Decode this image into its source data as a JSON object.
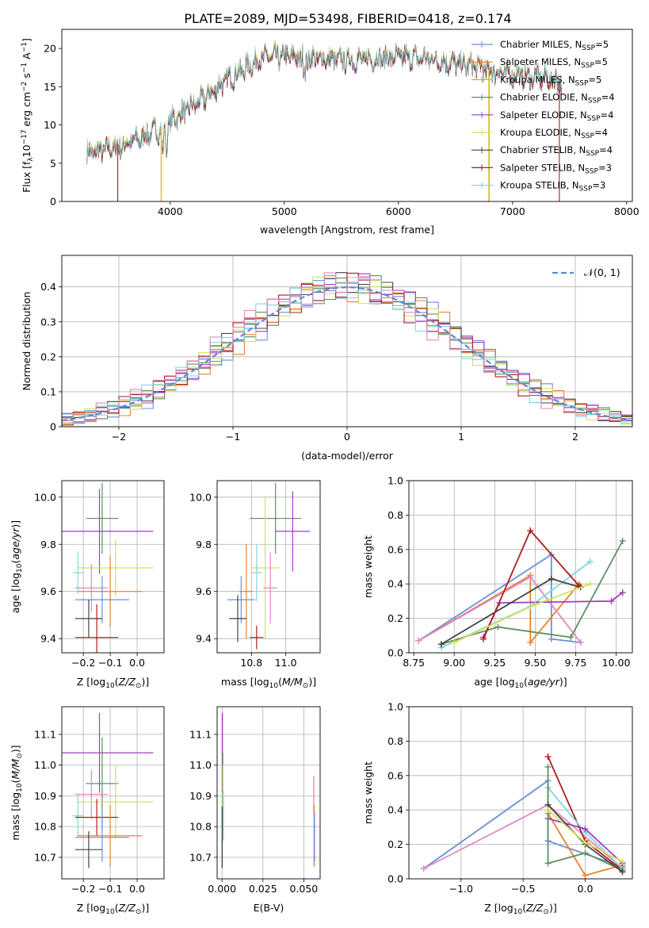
{
  "title": "PLATE=2089, MJD=53498, FIBERID=0418, z=0.174",
  "colors": [
    "#6a8fd8",
    "#e8822f",
    "#e6a23c",
    "#5f8f5f",
    "#a23cc0",
    "#d4e25a",
    "#444444",
    "#b01c1c",
    "#7fd8e0",
    "#e088c0"
  ],
  "chart_data": [
    {
      "type": "line",
      "id": "spectrum",
      "xlabel": "wavelength [Angstrom, rest frame]",
      "ylabel": "Flux [f_λ 10^-17 erg cm^-2 s^-1 A^-1]",
      "xlim": [
        3050,
        8050
      ],
      "ylim": [
        0,
        22.5
      ],
      "xticks": [
        4000,
        5000,
        6000,
        7000,
        8000
      ],
      "yticks": [
        0,
        5,
        10,
        15,
        20
      ],
      "x_range_data": [
        3270,
        7430
      ],
      "legend_position": "right",
      "series": [
        {
          "name": "Chabrier MILES, N_SSP=5",
          "color": "#6a8fd8"
        },
        {
          "name": "Salpeter MILES, N_SSP=5",
          "color": "#e8822f"
        },
        {
          "name": "Kroupa MILES, N_SSP=5",
          "color": "#e6a23c"
        },
        {
          "name": "Chabrier ELODIE, N_SSP=4",
          "color": "#5f8f5f"
        },
        {
          "name": "Salpeter ELODIE, N_SSP=4",
          "color": "#a23cc0"
        },
        {
          "name": "Kroupa ELODIE, N_SSP=4",
          "color": "#d4e25a"
        },
        {
          "name": "Chabrier STELIB, N_SSP=4",
          "color": "#444444"
        },
        {
          "name": "Salpeter STELIB, N_SSP=3",
          "color": "#b01c1c"
        },
        {
          "name": "Kroupa STELIB, N_SSP=3",
          "color": "#7fd8e0"
        }
      ],
      "continuum": {
        "x": [
          3270,
          3500,
          3700,
          3900,
          4050,
          4300,
          4500,
          4800,
          5000,
          5300,
          5600,
          6000,
          6300,
          6600,
          6800,
          7000,
          7200,
          7430
        ],
        "y": [
          6.3,
          7.0,
          8.0,
          9.5,
          11.0,
          13.5,
          16.0,
          18.8,
          19.0,
          18.6,
          18.5,
          18.9,
          18.6,
          17.8,
          17.2,
          16.6,
          16.3,
          15.8
        ]
      },
      "dropouts": [
        {
          "x": 3540,
          "color": "#b01c1c"
        },
        {
          "x": 3920,
          "color": "#e6a23c"
        },
        {
          "x": 3925,
          "color": "#d4e25a"
        },
        {
          "x": 6790,
          "color": "#d4e25a"
        },
        {
          "x": 6795,
          "color": "#e6a23c"
        },
        {
          "x": 7410,
          "color": "#b01c1c"
        }
      ]
    },
    {
      "type": "step",
      "id": "residuals",
      "xlabel": "(data-model)/error",
      "ylabel": "Normed distribution",
      "xlim": [
        -2.5,
        2.5
      ],
      "ylim": [
        0,
        0.49
      ],
      "xticks": [
        -2,
        -1,
        0,
        1,
        2
      ],
      "yticks": [
        0.0,
        0.1,
        0.2,
        0.3,
        0.4
      ],
      "bin_width": 0.1,
      "legend_label": "𝒩(0, 1)",
      "legend_position": "top-right",
      "series": [
        {
          "color": "#6a8fd8",
          "jitter": [
            0.02,
            -0.01,
            0.03,
            0.0,
            -0.02,
            0.01,
            0.02,
            -0.03,
            0.01,
            0.0
          ]
        },
        {
          "color": "#e8822f",
          "jitter": [
            -0.01,
            0.02,
            -0.02,
            0.03,
            0.01,
            -0.03,
            0.0,
            0.02,
            -0.01,
            0.01
          ]
        },
        {
          "color": "#5f8f5f",
          "jitter": [
            0.0,
            0.03,
            0.01,
            -0.02,
            0.02,
            0.0,
            -0.01,
            0.03,
            -0.02,
            0.01
          ]
        },
        {
          "color": "#a23cc0",
          "jitter": [
            0.03,
            -0.02,
            0.0,
            0.01,
            -0.01,
            0.02,
            0.03,
            -0.02,
            0.0,
            0.02
          ]
        },
        {
          "color": "#d4e25a",
          "jitter": [
            -0.02,
            0.01,
            0.03,
            -0.01,
            0.0,
            0.02,
            -0.03,
            0.01,
            0.02,
            -0.02
          ]
        },
        {
          "color": "#444444",
          "jitter": [
            0.01,
            0.0,
            -0.02,
            0.02,
            0.03,
            -0.01,
            0.01,
            -0.02,
            0.03,
            0.0
          ]
        },
        {
          "color": "#b01c1c",
          "jitter": [
            -0.03,
            0.02,
            0.01,
            0.0,
            -0.02,
            0.03,
            0.02,
            0.0,
            -0.01,
            0.02
          ]
        },
        {
          "color": "#7fd8e0",
          "jitter": [
            0.02,
            -0.03,
            0.0,
            0.02,
            0.01,
            -0.02,
            0.0,
            0.03,
            0.01,
            -0.01
          ]
        },
        {
          "color": "#e088c0",
          "jitter": [
            0.0,
            0.01,
            -0.03,
            0.03,
            -0.01,
            0.01,
            0.03,
            -0.01,
            0.02,
            0.0
          ]
        }
      ]
    },
    {
      "type": "errorbar",
      "id": "age-vs-z",
      "xlabel": "Z [log10(Z/Z⊙)]",
      "ylabel": "age [log10(age/yr)]",
      "xlim": [
        -0.28,
        0.1
      ],
      "ylim": [
        9.34,
        10.07
      ],
      "xticks": [
        -0.2,
        -0.1,
        0.0
      ],
      "xtick_labels": [
        "−0.2",
        "−0.1",
        "0.0"
      ],
      "yticks": [
        9.4,
        9.6,
        9.8,
        10.0
      ],
      "yticks_labels": [
        "9.4",
        "9.6",
        "9.8",
        "10.0"
      ],
      "points": [
        {
          "x": -0.13,
          "xerr": 0.06,
          "y": 9.91,
          "yerr": 0.15,
          "color": "#5f8f5f"
        },
        {
          "x": -0.14,
          "xerr": 0.2,
          "y": 9.855,
          "yerr": 0.18,
          "color": "#a23cc0"
        },
        {
          "x": -0.08,
          "xerr": 0.14,
          "y": 9.7,
          "yerr": 0.12,
          "color": "#d4e25a"
        },
        {
          "x": -0.22,
          "xerr": 0.02,
          "y": 9.68,
          "yerr": 0.09,
          "color": "#7fd8e0"
        },
        {
          "x": -0.17,
          "xerr": 0.06,
          "y": 9.615,
          "yerr": 0.1,
          "color": "#e088c0"
        },
        {
          "x": -0.1,
          "xerr": 0.12,
          "y": 9.6,
          "yerr": 0.15,
          "color": "#e8822f"
        },
        {
          "x": -0.13,
          "xerr": 0.1,
          "y": 9.565,
          "yerr": 0.1,
          "color": "#6a8fd8"
        },
        {
          "x": -0.18,
          "xerr": 0.05,
          "y": 9.485,
          "yerr": 0.08,
          "color": "#444444"
        },
        {
          "x": -0.15,
          "xerr": 0.08,
          "y": 9.405,
          "yerr": 0.14,
          "color": "#b01c1c"
        }
      ]
    },
    {
      "type": "errorbar",
      "id": "age-vs-mass",
      "xlabel": "mass [log10(M/M⊙)]",
      "ylabel": "",
      "xlim": [
        10.6,
        11.2
      ],
      "ylim": [
        9.34,
        10.07
      ],
      "xticks": [
        10.8,
        11.0
      ],
      "xtick_labels": [
        "10.8",
        "11.0"
      ],
      "yticks": [
        9.4,
        9.6,
        9.8,
        10.0
      ],
      "yticks_labels": [
        "9.4",
        "9.6",
        "9.8",
        "10.0"
      ],
      "points": [
        {
          "x": 10.94,
          "xerr": 0.15,
          "y": 9.91,
          "yerr": 0.15,
          "color": "#5f8f5f"
        },
        {
          "x": 11.04,
          "xerr": 0.1,
          "y": 9.855,
          "yerr": 0.17,
          "color": "#a23cc0"
        },
        {
          "x": 10.88,
          "xerr": 0.08,
          "y": 9.7,
          "yerr": 0.3,
          "color": "#d4e25a"
        },
        {
          "x": 10.83,
          "xerr": 0.03,
          "y": 9.68,
          "yerr": 0.12,
          "color": "#7fd8e0"
        },
        {
          "x": 10.91,
          "xerr": 0.04,
          "y": 9.615,
          "yerr": 0.15,
          "color": "#e088c0"
        },
        {
          "x": 10.77,
          "xerr": 0.04,
          "y": 9.6,
          "yerr": 0.2,
          "color": "#e8822f"
        },
        {
          "x": 10.74,
          "xerr": 0.08,
          "y": 9.565,
          "yerr": 0.1,
          "color": "#6a8fd8"
        },
        {
          "x": 10.72,
          "xerr": 0.05,
          "y": 9.485,
          "yerr": 0.1,
          "color": "#444444"
        },
        {
          "x": 10.83,
          "xerr": 0.04,
          "y": 9.405,
          "yerr": 0.05,
          "color": "#b01c1c"
        }
      ]
    },
    {
      "type": "line",
      "id": "weight-vs-age",
      "xlabel": "age [log10(age/yr)]",
      "ylabel": "mass weight",
      "xlim": [
        8.72,
        10.1
      ],
      "ylim": [
        0,
        1
      ],
      "xticks": [
        8.75,
        9.0,
        9.25,
        9.5,
        9.75,
        10.0
      ],
      "xtick_labels": [
        "8.75",
        "9.00",
        "9.25",
        "9.50",
        "9.75",
        "10.00"
      ],
      "yticks": [
        0.0,
        0.2,
        0.4,
        0.6,
        0.8,
        1.0
      ],
      "yticks_labels": [
        "0.0",
        "0.2",
        "0.4",
        "0.6",
        "0.8",
        "1.0"
      ],
      "series": [
        {
          "color": "#6a8fd8",
          "x": [
            8.78,
            9.6,
            9.6,
            9.78
          ],
          "y": [
            0.07,
            0.57,
            0.08,
            0.06
          ]
        },
        {
          "color": "#e8822f",
          "x": [
            8.78,
            9.47,
            9.47,
            9.77
          ],
          "y": [
            0.07,
            0.45,
            0.06,
            0.4
          ]
        },
        {
          "color": "#e088c0",
          "x": [
            8.78,
            9.47,
            9.78
          ],
          "y": [
            0.07,
            0.44,
            0.06
          ]
        },
        {
          "color": "#7fd8e0",
          "x": [
            8.92,
            9.47,
            9.84
          ],
          "y": [
            0.03,
            0.27,
            0.53
          ]
        },
        {
          "color": "#a23cc0",
          "x": [
            9.18,
            9.28,
            9.97,
            10.04
          ],
          "y": [
            0.09,
            0.29,
            0.3,
            0.35
          ]
        },
        {
          "color": "#5f8f5f",
          "x": [
            8.92,
            9.27,
            9.72,
            10.04
          ],
          "y": [
            0.05,
            0.15,
            0.09,
            0.65
          ]
        },
        {
          "color": "#444444",
          "x": [
            8.92,
            9.6,
            9.78
          ],
          "y": [
            0.05,
            0.43,
            0.38
          ]
        },
        {
          "color": "#b01c1c",
          "x": [
            9.18,
            9.47,
            9.77
          ],
          "y": [
            0.08,
            0.71,
            0.39
          ]
        },
        {
          "color": "#d4e25a",
          "x": [
            9.0,
            9.5,
            9.84
          ],
          "y": [
            0.06,
            0.28,
            0.4
          ]
        }
      ]
    },
    {
      "type": "errorbar",
      "id": "mass-vs-z",
      "xlabel": "Z [log10(Z/Z⊙)]",
      "ylabel": "mass [log10(M/M⊙)]",
      "xlim": [
        -0.28,
        0.1
      ],
      "ylim": [
        10.63,
        11.19
      ],
      "xticks": [
        -0.2,
        -0.1,
        0.0
      ],
      "xtick_labels": [
        "−0.2",
        "−0.1",
        "0.0"
      ],
      "yticks": [
        10.7,
        10.8,
        10.9,
        11.0,
        11.1
      ],
      "yticks_labels": [
        "10.7",
        "10.8",
        "10.9",
        "11.0",
        "11.1"
      ],
      "points": [
        {
          "x": -0.14,
          "xerr": 0.2,
          "y": 11.04,
          "yerr": 0.13,
          "color": "#a23cc0"
        },
        {
          "x": -0.13,
          "xerr": 0.06,
          "y": 10.94,
          "yerr": 0.15,
          "color": "#5f8f5f"
        },
        {
          "x": -0.17,
          "xerr": 0.06,
          "y": 10.905,
          "yerr": 0.08,
          "color": "#e088c0"
        },
        {
          "x": -0.08,
          "xerr": 0.14,
          "y": 10.88,
          "yerr": 0.12,
          "color": "#d4e25a"
        },
        {
          "x": -0.22,
          "xerr": 0.02,
          "y": 10.835,
          "yerr": 0.07,
          "color": "#7fd8e0"
        },
        {
          "x": -0.15,
          "xerr": 0.08,
          "y": 10.83,
          "yerr": 0.06,
          "color": "#b01c1c"
        },
        {
          "x": -0.1,
          "xerr": 0.12,
          "y": 10.77,
          "yerr": 0.1,
          "color": "#e8822f"
        },
        {
          "x": -0.13,
          "xerr": 0.1,
          "y": 10.765,
          "yerr": 0.08,
          "color": "#6a8fd8"
        },
        {
          "x": -0.18,
          "xerr": 0.05,
          "y": 10.725,
          "yerr": 0.06,
          "color": "#444444"
        }
      ]
    },
    {
      "type": "errorbar",
      "id": "mass-vs-ebv",
      "xlabel": "E(B-V)",
      "ylabel": "",
      "xlim": [
        -0.003,
        0.06
      ],
      "ylim": [
        10.63,
        11.19
      ],
      "xticks": [
        0.0,
        0.025,
        0.05
      ],
      "xtick_labels": [
        "0.000",
        "0.025",
        "0.050"
      ],
      "yticks": [
        10.7,
        10.8,
        10.9,
        11.0,
        11.1
      ],
      "yticks_labels": [
        "10.7",
        "10.8",
        "10.9",
        "11.0",
        "11.1"
      ],
      "points": [
        {
          "x": 0.0002,
          "xerr": 0,
          "y": 11.04,
          "yerr": 0.13,
          "color": "#a23cc0"
        },
        {
          "x": 0.0004,
          "xerr": 0,
          "y": 10.94,
          "yerr": 0.1,
          "color": "#5f8f5f"
        },
        {
          "x": 0.0006,
          "xerr": 0,
          "y": 10.88,
          "yerr": 0.12,
          "color": "#d4e25a"
        },
        {
          "x": 0.0008,
          "xerr": 0,
          "y": 10.835,
          "yerr": 0.08,
          "color": "#7fd8e0"
        },
        {
          "x": 0.0001,
          "xerr": 0,
          "y": 10.765,
          "yerr": 0.1,
          "color": "#444444"
        },
        {
          "x": 0.0561,
          "xerr": 0,
          "y": 10.905,
          "yerr": 0.06,
          "color": "#e088c0"
        },
        {
          "x": 0.0563,
          "xerr": 0,
          "y": 10.77,
          "yerr": 0.1,
          "color": "#e8822f"
        },
        {
          "x": 0.0565,
          "xerr": 0,
          "y": 10.765,
          "yerr": 0.08,
          "color": "#6a8fd8"
        }
      ]
    },
    {
      "type": "line",
      "id": "weight-vs-z",
      "xlabel": "Z [log10(Z/Z⊙)]",
      "ylabel": "mass weight",
      "xlim": [
        -1.42,
        0.38
      ],
      "ylim": [
        0,
        1
      ],
      "xticks": [
        -1.0,
        -0.5,
        0.0
      ],
      "xtick_labels": [
        "−1.0",
        "−0.5",
        "0.0"
      ],
      "yticks": [
        0.0,
        0.2,
        0.4,
        0.6,
        0.8,
        1.0
      ],
      "yticks_labels": [
        "0.0",
        "0.2",
        "0.4",
        "0.6",
        "0.8",
        "1.0"
      ],
      "series": [
        {
          "color": "#6a8fd8",
          "x": [
            -1.3,
            -0.3,
            -0.3,
            0.3
          ],
          "y": [
            0.06,
            0.57,
            0.22,
            0.07
          ]
        },
        {
          "color": "#e088c0",
          "x": [
            -1.3,
            -0.3,
            0.3
          ],
          "y": [
            0.06,
            0.43,
            0.06
          ]
        },
        {
          "color": "#e8822f",
          "x": [
            -0.3,
            0.0,
            0.3
          ],
          "y": [
            0.38,
            0.02,
            0.08
          ]
        },
        {
          "color": "#b01c1c",
          "x": [
            -0.3,
            0.0,
            0.3
          ],
          "y": [
            0.71,
            0.22,
            0.05
          ]
        },
        {
          "color": "#7fd8e0",
          "x": [
            -0.3,
            0.0,
            0.3
          ],
          "y": [
            0.53,
            0.27,
            0.06
          ]
        },
        {
          "color": "#a23cc0",
          "x": [
            -0.3,
            0.0,
            0.3
          ],
          "y": [
            0.35,
            0.29,
            0.09
          ]
        },
        {
          "color": "#5f8f5f",
          "x": [
            -0.3,
            -0.3,
            0.0,
            0.3
          ],
          "y": [
            0.65,
            0.09,
            0.15,
            0.05
          ]
        },
        {
          "color": "#444444",
          "x": [
            -0.3,
            0.0,
            0.3
          ],
          "y": [
            0.43,
            0.2,
            0.04
          ]
        },
        {
          "color": "#d4e25a",
          "x": [
            -0.3,
            0.0,
            0.3
          ],
          "y": [
            0.4,
            0.21,
            0.1
          ]
        }
      ]
    }
  ]
}
